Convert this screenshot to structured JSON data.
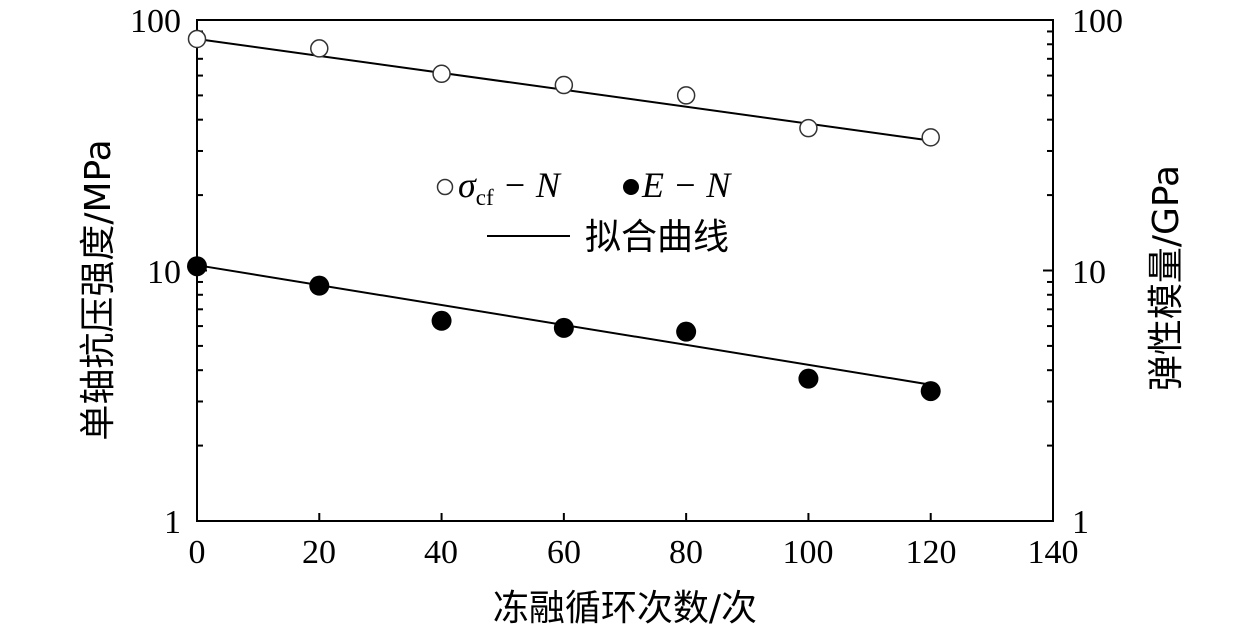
{
  "chart_data": {
    "type": "scatter",
    "xlabel": "冻融循环次数/次",
    "ylabel": "单轴抗压强度/MPa",
    "y2label": "弹性模量/GPa",
    "xlim": [
      0,
      140
    ],
    "ylim": [
      1,
      100
    ],
    "y2lim": [
      1,
      100
    ],
    "yscale": "log",
    "x_ticks": [
      "0",
      "20",
      "40",
      "60",
      "80",
      "100",
      "120",
      "140"
    ],
    "y_ticks": [
      "1",
      "10",
      "100"
    ],
    "y2_ticks": [
      "1",
      "10",
      "100"
    ],
    "grid": false,
    "legend": {
      "placement": "center",
      "entries": [
        {
          "series": "sigma",
          "symbol": "σ",
          "subscript": "cf",
          "rest": " − N"
        },
        {
          "series": "modulus",
          "symbol": "E",
          "subscript": "",
          "rest": " − N"
        },
        {
          "series": "fit",
          "label": "拟合曲线"
        }
      ]
    },
    "series": [
      {
        "id": "sigma",
        "marker": "open-circle",
        "axis": "left",
        "x": [
          0,
          20,
          40,
          60,
          80,
          100,
          120
        ],
        "y": [
          84,
          77,
          61,
          55,
          50,
          37,
          34
        ]
      },
      {
        "id": "modulus",
        "marker": "filled-circle",
        "axis": "right",
        "x": [
          0,
          20,
          40,
          60,
          80,
          100,
          120
        ],
        "y": [
          10.4,
          8.7,
          6.3,
          5.9,
          5.7,
          3.7,
          3.3
        ]
      }
    ],
    "fits": [
      {
        "series": "sigma",
        "x": [
          0,
          120
        ],
        "y": [
          84,
          33
        ]
      },
      {
        "series": "modulus",
        "x": [
          0,
          120
        ],
        "y": [
          10.5,
          3.5
        ]
      }
    ]
  }
}
